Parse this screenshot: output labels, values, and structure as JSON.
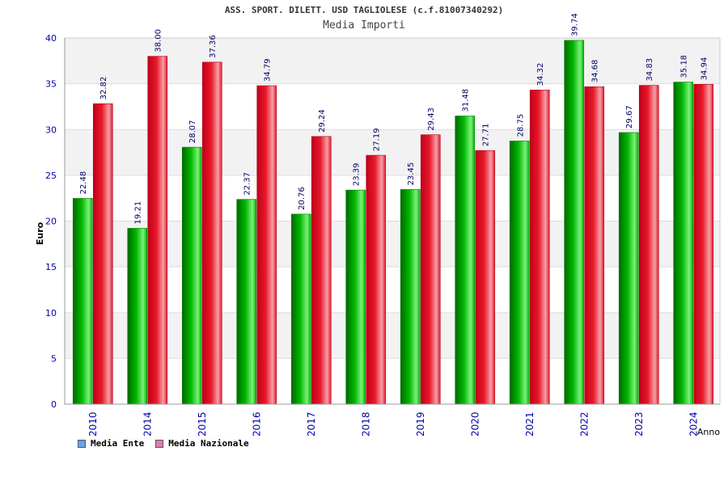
{
  "colors": {
    "ente_bar": "#00b800",
    "nazionale_bar": "#e8192a",
    "legend_ente": "#6aa4e8",
    "legend_nazionale": "#e37ab3",
    "axis_text": "#0000aa",
    "value_label": "#000066",
    "band": "#f2f2f2"
  },
  "legend": {
    "ente_label": "Media Ente",
    "nazionale_label": "Media Nazionale"
  },
  "chart_data": {
    "type": "bar",
    "title": "ASS. SPORT. DILETT. USD TAGLIOLESE (c.f.81007340292)",
    "subtitle": "Media Importi",
    "xlabel": "Anno",
    "ylabel": "Euro",
    "ylim": [
      0,
      40
    ],
    "yticks": [
      0,
      5,
      10,
      15,
      20,
      25,
      30,
      35,
      40
    ],
    "grid": true,
    "legend_position": "bottom-left",
    "categories": [
      "2010",
      "2014",
      "2015",
      "2016",
      "2017",
      "2018",
      "2019",
      "2020",
      "2021",
      "2022",
      "2023",
      "2024"
    ],
    "series": [
      {
        "name": "Media Ente",
        "values": [
          22.48,
          19.21,
          28.07,
          22.37,
          20.76,
          23.39,
          23.45,
          31.48,
          28.75,
          39.74,
          29.67,
          35.18
        ],
        "labels": [
          "22.48",
          "19.21",
          "28.07",
          "22.37",
          "20.76",
          "23.39",
          "23.45",
          "31.48",
          "28.75",
          "39.74",
          "29.67",
          "35.18"
        ]
      },
      {
        "name": "Media Nazionale",
        "values": [
          32.82,
          38.0,
          37.36,
          34.79,
          29.24,
          27.19,
          29.43,
          27.71,
          34.32,
          34.68,
          34.83,
          34.94
        ],
        "labels": [
          "32.82",
          "38.00",
          "37.36",
          "34.79",
          "29.24",
          "27.19",
          "29.43",
          "27.71",
          "34.32",
          "34.68",
          "34.83",
          "34.94"
        ]
      }
    ]
  }
}
